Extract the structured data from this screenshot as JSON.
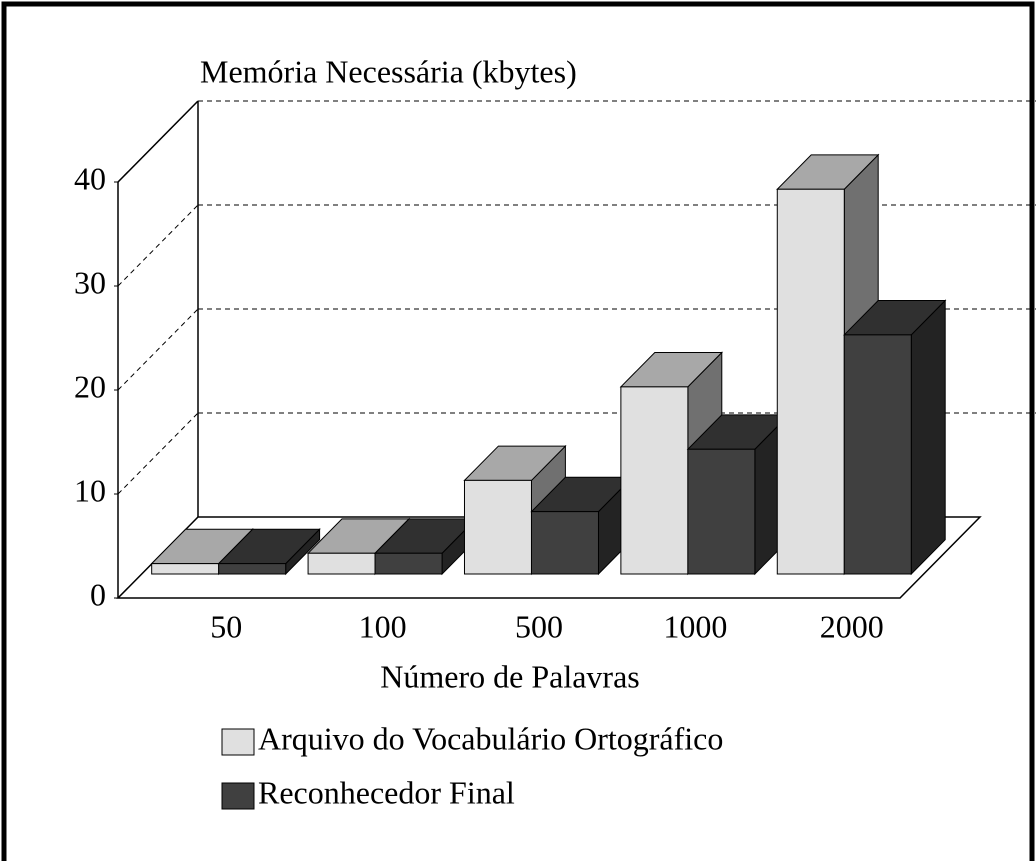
{
  "chart_data": {
    "type": "bar",
    "title": "Memória Necessária (kbytes)",
    "x_label": "Número de Palavras",
    "categories": [
      "50",
      "100",
      "500",
      "1000",
      "2000"
    ],
    "series": [
      {
        "name": "Arquivo do Vocabulário Ortográfico",
        "color": "#e0e0e0",
        "values": [
          1,
          2,
          9,
          18,
          37
        ]
      },
      {
        "name": "Reconhecedor Final",
        "color": "#404040",
        "values": [
          1,
          2,
          6,
          12,
          23
        ]
      }
    ],
    "ylim": [
      0,
      40
    ],
    "yticks": [
      0,
      10,
      20,
      30,
      40
    ],
    "grid": true,
    "legend": "bottom"
  }
}
